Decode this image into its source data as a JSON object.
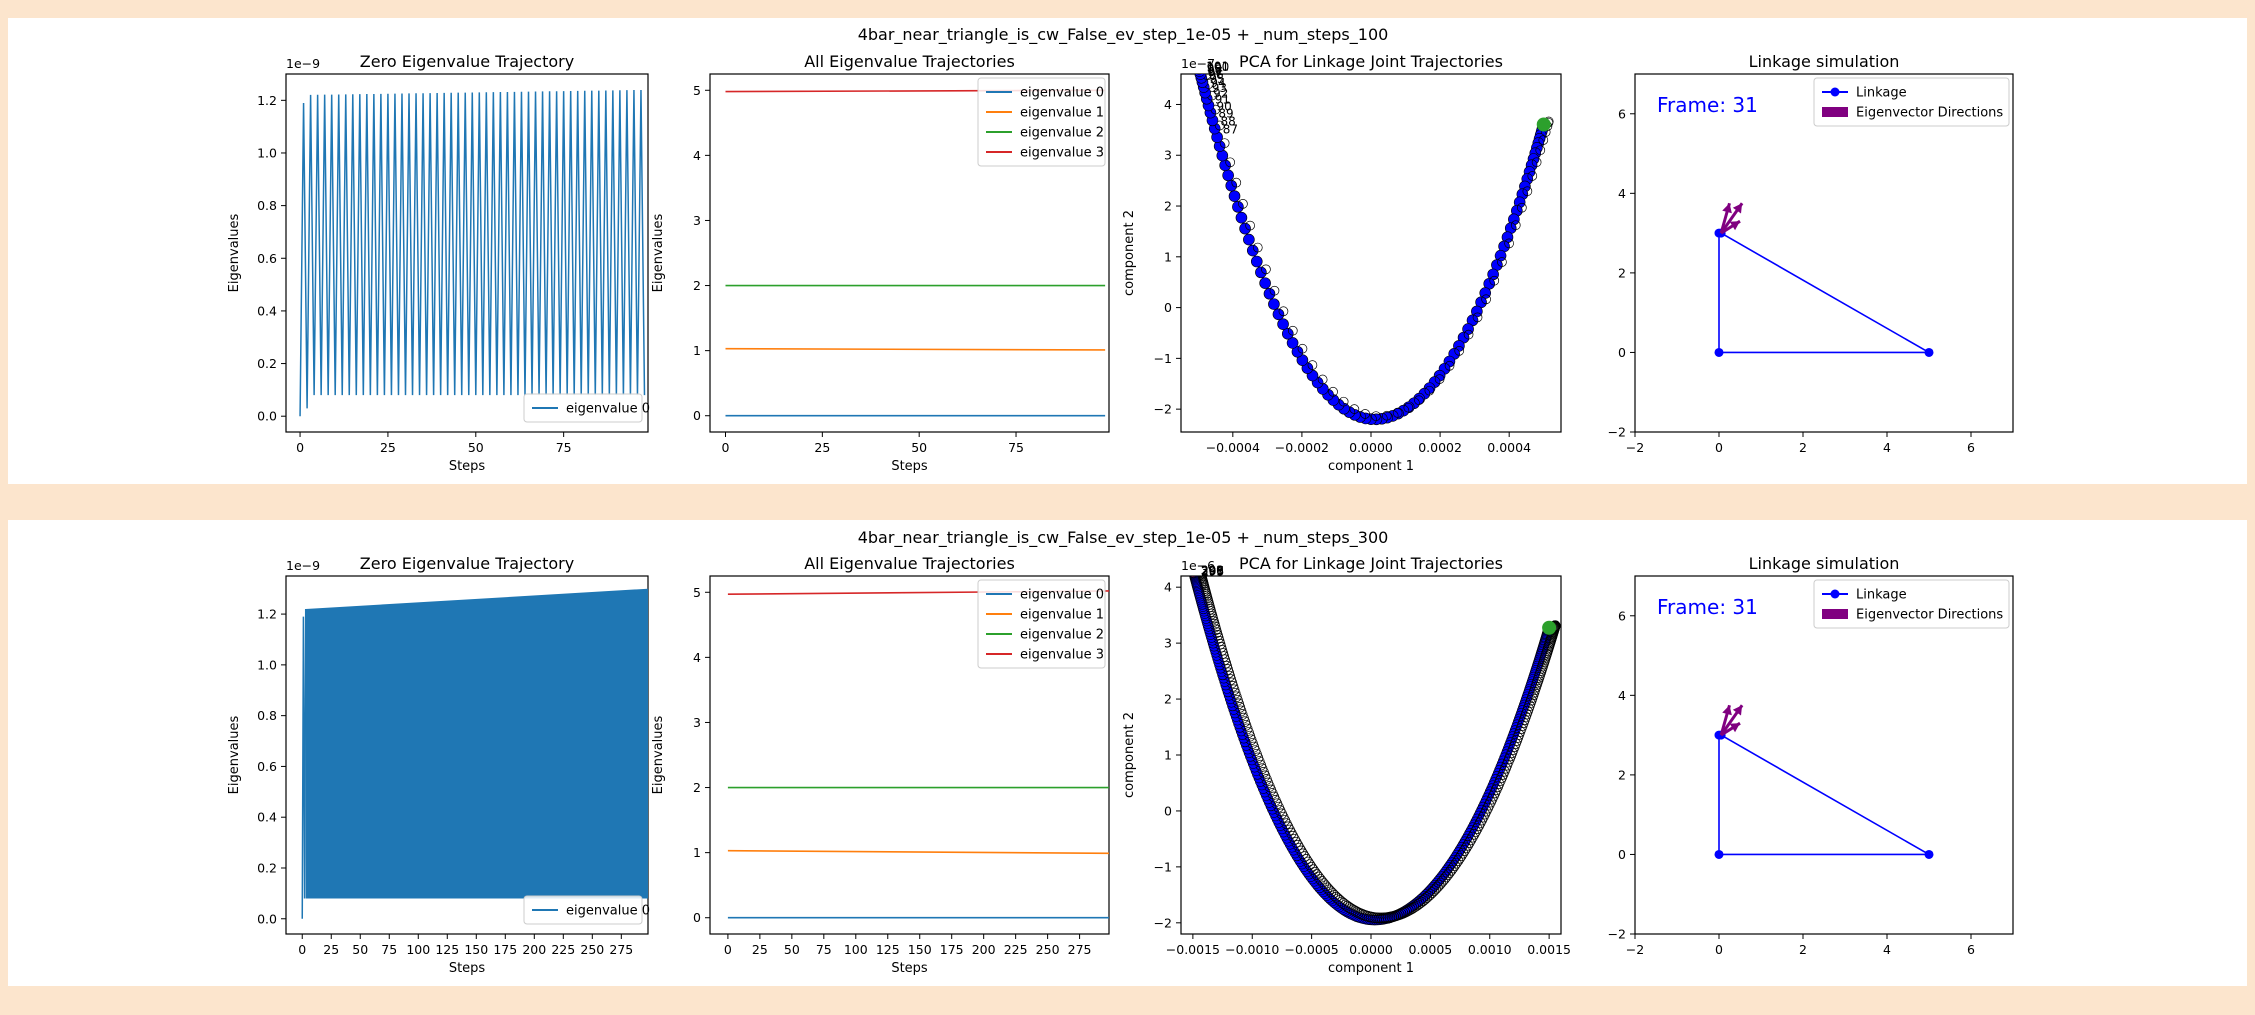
{
  "colors": {
    "background": "#fce5cd",
    "panel": "#ffffff",
    "tab_blue": "#1f77b4",
    "tab_orange": "#ff7f0e",
    "tab_green": "#2ca02c",
    "tab_red": "#d62728",
    "linkage": "#0000ff",
    "eigenvector": "#800080"
  },
  "rows": [
    {
      "title": "4bar_near_triangle_is_cw_False_ev_step_1e-05 + _num_steps_100",
      "num_steps": 100,
      "zero_ev": {
        "type": "line",
        "title": "Zero Eigenvalue Trajectory",
        "xlabel": "Steps",
        "ylabel": "Eigenvalues",
        "offset": "1e−9",
        "xlim": [
          -4,
          99
        ],
        "ylim": [
          -0.06,
          1.3
        ],
        "xticks": [
          0,
          25,
          50,
          75
        ],
        "xticklabels": [
          "0",
          "25",
          "50",
          "75"
        ],
        "yticks": [
          0.0,
          0.2,
          0.4,
          0.6,
          0.8,
          1.0,
          1.2
        ],
        "yticklabels": [
          "0.0",
          "0.2",
          "0.4",
          "0.6",
          "0.8",
          "1.0",
          "1.2"
        ],
        "legend": [
          "eigenvalue 0"
        ],
        "legend_loc": "lower-right",
        "oscillation": {
          "low": 0.08,
          "high_start": 1.22,
          "high_end": 1.24,
          "first_low": 0.0,
          "first_high": 1.19,
          "second_low": 0.03
        }
      },
      "all_ev": {
        "type": "line",
        "title": "All Eigenvalue Trajectories",
        "xlabel": "Steps",
        "ylabel": "Eigenvalues",
        "xlim": [
          -4,
          99
        ],
        "ylim": [
          -0.25,
          5.25
        ],
        "xticks": [
          0,
          25,
          50,
          75
        ],
        "xticklabels": [
          "0",
          "25",
          "50",
          "75"
        ],
        "yticks": [
          0,
          1,
          2,
          3,
          4,
          5
        ],
        "yticklabels": [
          "0",
          "1",
          "2",
          "3",
          "4",
          "5"
        ],
        "series": [
          {
            "name": "eigenvalue 0",
            "start": 0.0,
            "end": 0.0
          },
          {
            "name": "eigenvalue 1",
            "start": 1.03,
            "end": 1.01
          },
          {
            "name": "eigenvalue 2",
            "start": 2.0,
            "end": 2.0
          },
          {
            "name": "eigenvalue 3",
            "start": 4.98,
            "end": 5.0
          }
        ],
        "legend_loc": "upper-right"
      },
      "pca": {
        "type": "scatter",
        "title": "PCA for Linkage Joint Trajectories",
        "xlabel": "component 1",
        "ylabel": "component 2",
        "offset": "1e−7",
        "xlim": [
          -0.00055,
          0.00055
        ],
        "ylim": [
          -2.45,
          4.6
        ],
        "xticks": [
          -0.0004,
          -0.0002,
          0.0,
          0.0002,
          0.0004
        ],
        "xticklabels": [
          "−0.0004",
          "−0.0002",
          "0.0000",
          "0.0002",
          "0.0004"
        ],
        "yticks": [
          -2,
          -1,
          0,
          1,
          2,
          3,
          4
        ],
        "yticklabels": [
          "−2",
          "−1",
          "0",
          "1",
          "2",
          "3",
          "4"
        ],
        "curve": {
          "x_extent": 0.0005,
          "y_min": -2.2,
          "y_max": 4.3,
          "x_min_pos": 1e-05
        },
        "visible_point_labels": [
          "101",
          "100",
          "99",
          "98",
          "97",
          "96",
          "95",
          "94",
          "93",
          "92",
          "91",
          "90",
          "89",
          "88",
          "87"
        ],
        "end_points": {
          "start_color": "#2ca02c",
          "end_color": "#d62728"
        }
      },
      "linkage": {
        "type": "scatter",
        "title": "Linkage simulation",
        "frame_label": "Frame: 31",
        "xlim": [
          -2,
          7
        ],
        "ylim": [
          -2,
          7
        ],
        "xticks": [
          -2,
          0,
          2,
          4,
          6
        ],
        "xticklabels": [
          "−2",
          "0",
          "2",
          "4",
          "6"
        ],
        "yticks": [
          -2,
          0,
          2,
          4,
          6
        ],
        "yticklabels": [
          "−2",
          "0",
          "2",
          "4",
          "6"
        ],
        "joints": [
          [
            0,
            0
          ],
          [
            5,
            0
          ],
          [
            0,
            3
          ],
          [
            0.05,
            3
          ]
        ],
        "segments": [
          [
            [
              0,
              0
            ],
            [
              5,
              0
            ]
          ],
          [
            [
              5,
              0
            ],
            [
              0.05,
              3
            ]
          ],
          [
            [
              0.05,
              3
            ],
            [
              0,
              3
            ]
          ],
          [
            [
              0,
              3
            ],
            [
              0,
              0
            ]
          ]
        ],
        "eigenvector_origin": [
          0.05,
          3
        ],
        "eigenvector_tips": [
          [
            0.55,
            3.75
          ],
          [
            0.25,
            3.75
          ],
          [
            0.5,
            3.3
          ]
        ],
        "legend": [
          "Linkage",
          "Eigenvector Directions"
        ],
        "legend_loc": "upper-right"
      }
    },
    {
      "title": "4bar_near_triangle_is_cw_False_ev_step_1e-05 + _num_steps_300",
      "num_steps": 300,
      "zero_ev": {
        "type": "line",
        "title": "Zero Eigenvalue Trajectory",
        "xlabel": "Steps",
        "ylabel": "Eigenvalues",
        "offset": "1e−9",
        "xlim": [
          -14,
          298
        ],
        "ylim": [
          -0.06,
          1.35
        ],
        "xticks": [
          0,
          25,
          50,
          75,
          100,
          125,
          150,
          175,
          200,
          225,
          250,
          275
        ],
        "xticklabels": [
          "0",
          "25",
          "50",
          "75",
          "100",
          "125",
          "150",
          "175",
          "200",
          "225",
          "250",
          "275"
        ],
        "yticks": [
          0.0,
          0.2,
          0.4,
          0.6,
          0.8,
          1.0,
          1.2
        ],
        "yticklabels": [
          "0.0",
          "0.2",
          "0.4",
          "0.6",
          "0.8",
          "1.0",
          "1.2"
        ],
        "legend": [
          "eigenvalue 0"
        ],
        "legend_loc": "lower-right",
        "band": {
          "low": 0.08,
          "high_start": 1.22,
          "high_end": 1.3,
          "first_low": 0.0,
          "first_high": 1.19
        }
      },
      "all_ev": {
        "type": "line",
        "title": "All Eigenvalue Trajectories",
        "xlabel": "Steps",
        "ylabel": "Eigenvalues",
        "xlim": [
          -14,
          298
        ],
        "ylim": [
          -0.25,
          5.25
        ],
        "xticks": [
          0,
          25,
          50,
          75,
          100,
          125,
          150,
          175,
          200,
          225,
          250,
          275
        ],
        "xticklabels": [
          "0",
          "25",
          "50",
          "75",
          "100",
          "125",
          "150",
          "175",
          "200",
          "225",
          "250",
          "275"
        ],
        "yticks": [
          0,
          1,
          2,
          3,
          4,
          5
        ],
        "yticklabels": [
          "0",
          "1",
          "2",
          "3",
          "4",
          "5"
        ],
        "series": [
          {
            "name": "eigenvalue 0",
            "start": 0.0,
            "end": 0.0
          },
          {
            "name": "eigenvalue 1",
            "start": 1.03,
            "end": 0.99
          },
          {
            "name": "eigenvalue 2",
            "start": 2.0,
            "end": 2.0
          },
          {
            "name": "eigenvalue 3",
            "start": 4.97,
            "end": 5.02
          }
        ],
        "legend_loc": "upper-right"
      },
      "pca": {
        "type": "scatter",
        "title": "PCA for Linkage Joint Trajectories",
        "xlabel": "component 1",
        "ylabel": "component 2",
        "offset": "1e−6",
        "xlim": [
          -0.0016,
          0.0016
        ],
        "ylim": [
          -2.2,
          4.2
        ],
        "xticks": [
          -0.0015,
          -0.001,
          -0.0005,
          0.0,
          0.0005,
          0.001,
          0.0015
        ],
        "xticklabels": [
          "−0.0015",
          "−0.0010",
          "−0.0005",
          "0.0000",
          "0.0005",
          "0.0010",
          "0.0015"
        ],
        "yticks": [
          -2,
          -1,
          0,
          1,
          2,
          3,
          4
        ],
        "yticklabels": [
          "−2",
          "−1",
          "0",
          "1",
          "2",
          "3",
          "4"
        ],
        "curve": {
          "x_extent": 0.0015,
          "y_min": -1.95,
          "y_max": 3.9,
          "x_min_pos": 3e-05
        },
        "visible_point_labels": [
          "301",
          "300",
          "299",
          "298",
          "297",
          "296",
          "295"
        ],
        "end_points": {
          "start_color": "#2ca02c",
          "end_color": "#d62728"
        }
      },
      "linkage": {
        "type": "scatter",
        "title": "Linkage simulation",
        "frame_label": "Frame: 31",
        "xlim": [
          -2,
          7
        ],
        "ylim": [
          -2,
          7
        ],
        "xticks": [
          -2,
          0,
          2,
          4,
          6
        ],
        "xticklabels": [
          "−2",
          "0",
          "2",
          "4",
          "6"
        ],
        "yticks": [
          -2,
          0,
          2,
          4,
          6
        ],
        "yticklabels": [
          "−2",
          "0",
          "2",
          "4",
          "6"
        ],
        "joints": [
          [
            0,
            0
          ],
          [
            5,
            0
          ],
          [
            0,
            3
          ],
          [
            0.05,
            3
          ]
        ],
        "segments": [
          [
            [
              0,
              0
            ],
            [
              5,
              0
            ]
          ],
          [
            [
              5,
              0
            ],
            [
              0.05,
              3
            ]
          ],
          [
            [
              0.05,
              3
            ],
            [
              0,
              3
            ]
          ],
          [
            [
              0,
              3
            ],
            [
              0,
              0
            ]
          ]
        ],
        "eigenvector_origin": [
          0.05,
          3
        ],
        "eigenvector_tips": [
          [
            0.55,
            3.75
          ],
          [
            0.25,
            3.75
          ],
          [
            0.5,
            3.3
          ]
        ],
        "legend": [
          "Linkage",
          "Eigenvector Directions"
        ],
        "legend_loc": "upper-right"
      }
    }
  ]
}
